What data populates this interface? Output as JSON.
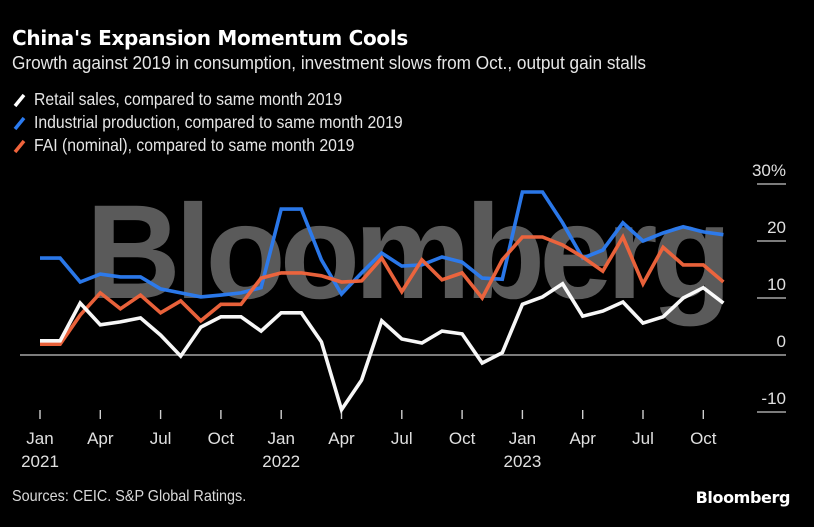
{
  "header": {
    "title": "China's Expansion Momentum Cools",
    "subtitle": "Growth against 2019 in consumption, investment slows from Oct., output gain stalls"
  },
  "legend": [
    {
      "label": "Retail sales, compared to same month 2019",
      "color": "#ffffff",
      "icon": "slash-line-icon"
    },
    {
      "label": "Industrial production, compared to same month 2019",
      "color": "#2b7bf0",
      "icon": "slash-line-icon"
    },
    {
      "label": "FAI (nominal), compared to same month 2019",
      "color": "#f0643c",
      "icon": "slash-line-icon"
    }
  ],
  "watermark": "Bloomberg",
  "footer": {
    "sources": "Sources: CEIC. S&P Global Ratings.",
    "brand": "Bloomberg"
  },
  "chart_data": {
    "type": "line",
    "title": "China's Expansion Momentum Cools",
    "subtitle": "Growth against 2019 in consumption, investment slows from Oct., output gain stalls",
    "xlabel": "",
    "ylabel": "",
    "ylim": [
      -10,
      30
    ],
    "y_ticks": [
      {
        "value": 30,
        "label": "30%"
      },
      {
        "value": 20,
        "label": "20"
      },
      {
        "value": 10,
        "label": "10"
      },
      {
        "value": 0,
        "label": "0"
      },
      {
        "value": -10,
        "label": "-10"
      }
    ],
    "x": [
      "2021-01",
      "2021-02",
      "2021-03",
      "2021-04",
      "2021-05",
      "2021-06",
      "2021-07",
      "2021-08",
      "2021-09",
      "2021-10",
      "2021-11",
      "2021-12",
      "2022-01",
      "2022-02",
      "2022-03",
      "2022-04",
      "2022-05",
      "2022-06",
      "2022-07",
      "2022-08",
      "2022-09",
      "2022-10",
      "2022-11",
      "2022-12",
      "2023-01",
      "2023-02",
      "2023-03",
      "2023-04",
      "2023-05",
      "2023-06",
      "2023-07",
      "2023-08",
      "2023-09",
      "2023-10",
      "2023-11"
    ],
    "x_ticks": [
      {
        "index": 0,
        "label": "Jan",
        "year": "2021"
      },
      {
        "index": 3,
        "label": "Apr",
        "year": ""
      },
      {
        "index": 6,
        "label": "Jul",
        "year": ""
      },
      {
        "index": 9,
        "label": "Oct",
        "year": ""
      },
      {
        "index": 12,
        "label": "Jan",
        "year": "2022"
      },
      {
        "index": 15,
        "label": "Apr",
        "year": ""
      },
      {
        "index": 18,
        "label": "Jul",
        "year": ""
      },
      {
        "index": 21,
        "label": "Oct",
        "year": ""
      },
      {
        "index": 24,
        "label": "Jan",
        "year": "2023"
      },
      {
        "index": 27,
        "label": "Apr",
        "year": ""
      },
      {
        "index": 30,
        "label": "Jul",
        "year": ""
      },
      {
        "index": 33,
        "label": "Oct",
        "year": ""
      }
    ],
    "grid": false,
    "legend_position": "top-left",
    "series": [
      {
        "name": "Industrial production, compared to same month 2019",
        "color": "#2b7bf0",
        "values": [
          17.0,
          17.0,
          12.8,
          14.2,
          13.7,
          13.7,
          11.6,
          10.9,
          10.2,
          10.5,
          10.9,
          11.8,
          25.6,
          25.6,
          16.7,
          10.7,
          14.4,
          17.9,
          15.6,
          15.8,
          17.2,
          16.3,
          13.5,
          13.3,
          28.6,
          28.6,
          23.2,
          17.0,
          18.4,
          23.2,
          20.0,
          21.4,
          22.5,
          21.6,
          21.1
        ]
      },
      {
        "name": "FAI (nominal), compared to same month 2019",
        "color": "#f0643c",
        "values": [
          1.9,
          1.9,
          7.0,
          10.9,
          8.1,
          10.5,
          7.4,
          9.5,
          6.0,
          8.9,
          8.9,
          13.5,
          14.4,
          14.4,
          13.9,
          12.8,
          13.0,
          17.0,
          11.1,
          16.7,
          13.2,
          14.4,
          10.0,
          16.7,
          20.7,
          20.7,
          19.3,
          17.2,
          14.7,
          20.7,
          12.5,
          18.9,
          15.8,
          15.8,
          12.8
        ]
      },
      {
        "name": "Retail sales, compared to same month 2019",
        "color": "#ffffff",
        "values": [
          2.5,
          2.5,
          9.1,
          5.3,
          5.8,
          6.5,
          3.5,
          -0.2,
          4.9,
          6.7,
          6.7,
          4.2,
          7.4,
          7.4,
          2.3,
          -9.6,
          -4.4,
          6.0,
          2.8,
          2.1,
          4.2,
          3.7,
          -1.4,
          0.4,
          8.9,
          10.2,
          12.5,
          6.8,
          7.7,
          9.3,
          5.6,
          6.7,
          10.0,
          11.8,
          9.1
        ]
      }
    ]
  }
}
